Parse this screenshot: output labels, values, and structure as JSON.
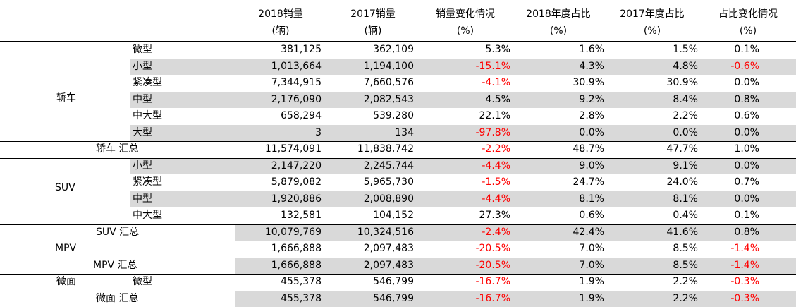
{
  "headers": [
    {
      "line1": "2018销量",
      "line2": "(辆)"
    },
    {
      "line1": "2017销量",
      "line2": "(辆)"
    },
    {
      "line1": "销量变化情况",
      "line2": "(%)"
    },
    {
      "line1": "2018年度占比",
      "line2": "(%)"
    },
    {
      "line1": "2017年度占比",
      "line2": "(%)"
    },
    {
      "line1": "占比变化情况",
      "line2": "(%)"
    }
  ],
  "groups": [
    {
      "label": "轿车"
    },
    {
      "label": "SUV"
    }
  ],
  "rows": [
    {
      "main": "",
      "sub": "微型",
      "shade": false,
      "v": [
        "381,125",
        "362,109",
        "5.3%",
        "1.6%",
        "1.5%",
        "0.1%"
      ],
      "neg": [
        false,
        false,
        false,
        false,
        false,
        false
      ]
    },
    {
      "main": "",
      "sub": "小型",
      "shade": true,
      "v": [
        "1,013,664",
        "1,194,100",
        "-15.1%",
        "4.3%",
        "4.8%",
        "-0.6%"
      ],
      "neg": [
        false,
        false,
        true,
        false,
        false,
        true
      ]
    },
    {
      "main": "",
      "sub": "紧凑型",
      "shade": false,
      "v": [
        "7,344,915",
        "7,660,576",
        "-4.1%",
        "30.9%",
        "30.9%",
        "0.0%"
      ],
      "neg": [
        false,
        false,
        true,
        false,
        false,
        false
      ]
    },
    {
      "main": "",
      "sub": "中型",
      "shade": true,
      "v": [
        "2,176,090",
        "2,082,543",
        "4.5%",
        "9.2%",
        "8.4%",
        "0.8%"
      ],
      "neg": [
        false,
        false,
        false,
        false,
        false,
        false
      ]
    },
    {
      "main": "",
      "sub": "中大型",
      "shade": false,
      "v": [
        "658,294",
        "539,280",
        "22.1%",
        "2.8%",
        "2.2%",
        "0.6%"
      ],
      "neg": [
        false,
        false,
        false,
        false,
        false,
        false
      ]
    },
    {
      "main": "",
      "sub": "大型",
      "shade": true,
      "v": [
        "3",
        "134",
        "-97.8%",
        "0.0%",
        "0.0%",
        "0.0%"
      ],
      "neg": [
        false,
        false,
        true,
        false,
        false,
        false
      ]
    },
    {
      "main": "轿车 汇总",
      "sub": "",
      "shade": false,
      "total": true,
      "v": [
        "11,574,091",
        "11,838,742",
        "-2.2%",
        "48.7%",
        "47.7%",
        "1.0%"
      ],
      "neg": [
        false,
        false,
        true,
        false,
        false,
        false
      ]
    },
    {
      "main": "",
      "sub": "小型",
      "shade": true,
      "v": [
        "2,147,220",
        "2,245,744",
        "-4.4%",
        "9.0%",
        "9.1%",
        "0.0%"
      ],
      "neg": [
        false,
        false,
        true,
        false,
        false,
        false
      ]
    },
    {
      "main": "",
      "sub": "紧凑型",
      "shade": false,
      "v": [
        "5,879,082",
        "5,965,730",
        "-1.5%",
        "24.7%",
        "24.0%",
        "0.7%"
      ],
      "neg": [
        false,
        false,
        true,
        false,
        false,
        false
      ]
    },
    {
      "main": "",
      "sub": "中型",
      "shade": true,
      "v": [
        "1,920,886",
        "2,008,890",
        "-4.4%",
        "8.1%",
        "8.1%",
        "0.0%"
      ],
      "neg": [
        false,
        false,
        true,
        false,
        false,
        false
      ]
    },
    {
      "main": "",
      "sub": "中大型",
      "shade": false,
      "v": [
        "132,581",
        "104,152",
        "27.3%",
        "0.6%",
        "0.4%",
        "0.1%"
      ],
      "neg": [
        false,
        false,
        false,
        false,
        false,
        false
      ]
    },
    {
      "main": "SUV 汇总",
      "sub": "",
      "shade": true,
      "total": true,
      "v": [
        "10,079,769",
        "10,324,516",
        "-2.4%",
        "42.4%",
        "41.6%",
        "0.8%"
      ],
      "neg": [
        false,
        false,
        true,
        false,
        false,
        false
      ]
    },
    {
      "main": "MPV",
      "sub": "",
      "shade": false,
      "v": [
        "1,666,888",
        "2,097,483",
        "-20.5%",
        "7.0%",
        "8.5%",
        "-1.4%"
      ],
      "neg": [
        false,
        false,
        true,
        false,
        false,
        true
      ]
    },
    {
      "main": "MPV 汇总",
      "sub": "",
      "shade": true,
      "total": true,
      "v": [
        "1,666,888",
        "2,097,483",
        "-20.5%",
        "7.0%",
        "8.5%",
        "-1.4%"
      ],
      "neg": [
        false,
        false,
        true,
        false,
        false,
        true
      ]
    },
    {
      "main": "微面",
      "sub": "微型",
      "shade": false,
      "v": [
        "455,378",
        "546,799",
        "-16.7%",
        "1.9%",
        "2.2%",
        "-0.3%"
      ],
      "neg": [
        false,
        false,
        true,
        false,
        false,
        true
      ]
    },
    {
      "main": "微面 汇总",
      "sub": "",
      "shade": true,
      "total": true,
      "v": [
        "455,378",
        "546,799",
        "-16.7%",
        "1.9%",
        "2.2%",
        "-0.3%"
      ],
      "neg": [
        false,
        false,
        true,
        false,
        false,
        true
      ]
    }
  ]
}
